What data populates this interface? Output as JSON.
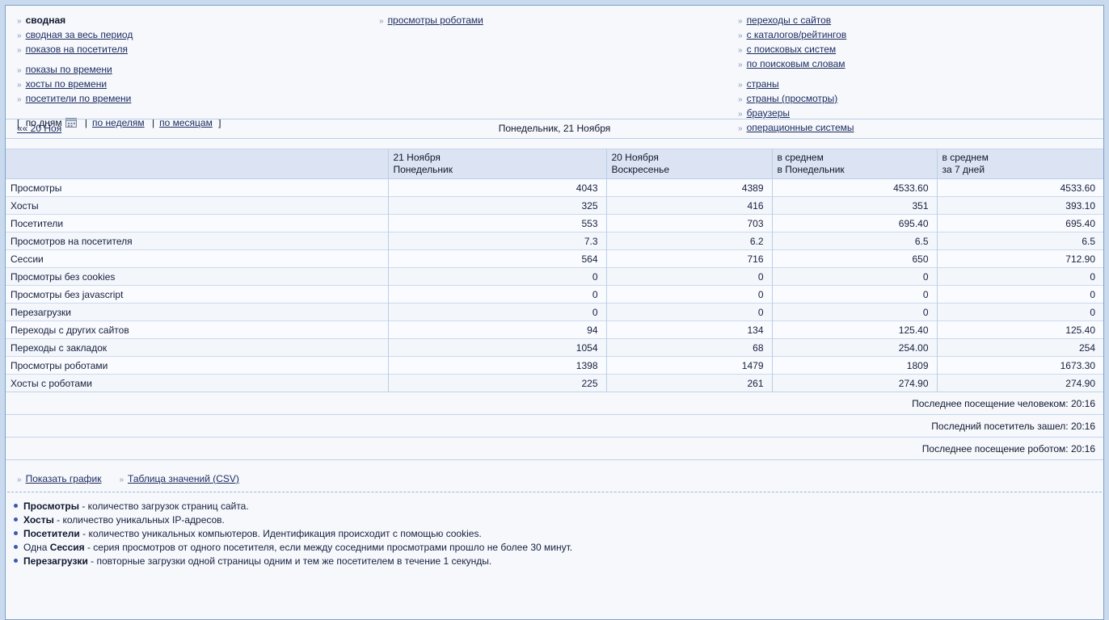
{
  "glyphs": {
    "nav_marker": "»"
  },
  "nav": {
    "left_primary": [
      {
        "label": "сводная",
        "current": true
      },
      {
        "label": "сводная за весь период"
      },
      {
        "label": "показов на посетителя"
      }
    ],
    "left_time": [
      {
        "label": "показы по времени"
      },
      {
        "label": "хосты по времени"
      },
      {
        "label": "посетители по времени"
      }
    ],
    "middle": [
      {
        "label": "просмотры роботами"
      }
    ],
    "right_referrers": [
      {
        "label": "переходы с сайтов"
      },
      {
        "label": "с каталогов/рейтингов"
      },
      {
        "label": "с поисковых систем"
      },
      {
        "label": "по поисковым словам"
      }
    ],
    "right_audience": [
      {
        "label": "страны"
      },
      {
        "label": "страны (просмотры)"
      },
      {
        "label": "браузеры"
      },
      {
        "label": "операционные системы"
      }
    ],
    "period": {
      "open": "[",
      "close": "]",
      "sep": "|",
      "day": "по дням",
      "day_icon": "calendar-icon",
      "week": "по неделям",
      "month": "по месяцам"
    }
  },
  "datebar": {
    "prev": "«« 20 Ноя",
    "title": "Понедельник, 21 Ноября"
  },
  "table": {
    "columns": [
      {
        "line1": "21 Ноября",
        "line2": "Понедельник"
      },
      {
        "line1": "20 Ноября",
        "line2": "Воскресенье"
      },
      {
        "line1": "в среднем",
        "line2": "в Понедельник"
      },
      {
        "line1": "в среднем",
        "line2": "за 7 дней"
      }
    ],
    "rows": [
      {
        "label": "Просмотры",
        "values": [
          "4043",
          "4389",
          "4533.60",
          "4533.60"
        ]
      },
      {
        "label": "Хосты",
        "values": [
          "325",
          "416",
          "351",
          "393.10"
        ]
      },
      {
        "label": "Посетители",
        "values": [
          "553",
          "703",
          "695.40",
          "695.40"
        ]
      },
      {
        "label": "Просмотров на посетителя",
        "values": [
          "7.3",
          "6.2",
          "6.5",
          "6.5"
        ]
      },
      {
        "label": "Сессии",
        "values": [
          "564",
          "716",
          "650",
          "712.90"
        ]
      },
      {
        "label": "Просмотры без cookies",
        "values": [
          "0",
          "0",
          "0",
          "0"
        ]
      },
      {
        "label": "Просмотры без javascript",
        "values": [
          "0",
          "0",
          "0",
          "0"
        ]
      },
      {
        "label": "Перезагрузки",
        "values": [
          "0",
          "0",
          "0",
          "0"
        ]
      },
      {
        "label": "Переходы с других сайтов",
        "values": [
          "94",
          "134",
          "125.40",
          "125.40"
        ]
      },
      {
        "label": "Переходы с закладок",
        "values": [
          "1054",
          "68",
          "254.00",
          "254"
        ]
      },
      {
        "label": "Просмотры роботами",
        "values": [
          "1398",
          "1479",
          "1809",
          "1673.30"
        ]
      },
      {
        "label": "Хосты с роботами",
        "values": [
          "225",
          "261",
          "274.90",
          "274.90"
        ]
      }
    ],
    "summary_rows": [
      "Последнее посещение человеком: 20:16",
      "Последний посетитель зашел: 20:16",
      "Последнее посещение роботом: 20:16"
    ]
  },
  "actions": [
    {
      "label": "Показать график"
    },
    {
      "label": "Таблица значений (CSV)"
    }
  ],
  "legend": [
    {
      "prefix": "",
      "term": "Просмотры",
      "text": " - количество загрузок страниц сайта."
    },
    {
      "prefix": "",
      "term": "Хосты",
      "text": " - количество уникальных IP-адресов."
    },
    {
      "prefix": "",
      "term": "Посетители",
      "text": " - количество уникальных компьютеров. Идентификация происходит с помощью cookies."
    },
    {
      "prefix": "Одна ",
      "term": "Сессия",
      "text": " - серия просмотров от одного посетителя, если между соседними просмотрами прошло не более 30 минут."
    },
    {
      "prefix": "",
      "term": "Перезагрузки",
      "text": " - повторные загрузки одной страницы одним и тем же посетителем в течение 1 секунды."
    }
  ]
}
